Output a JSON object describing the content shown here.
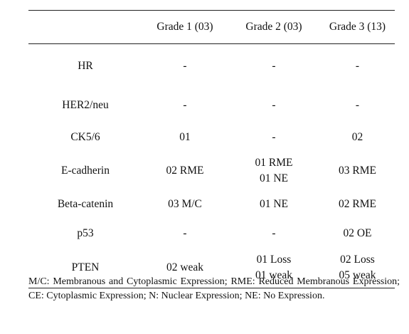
{
  "table": {
    "headers": [
      "",
      "Grade 1 (03)",
      "Grade 2 (03)",
      "Grade 3 (13)"
    ],
    "rows": [
      {
        "marker": "HR",
        "g1": [
          "-"
        ],
        "g2": [
          "-"
        ],
        "g3": [
          "-"
        ]
      },
      {
        "marker": "HER2/neu",
        "g1": [
          "-"
        ],
        "g2": [
          "-"
        ],
        "g3": [
          "-"
        ]
      },
      {
        "marker": "CK5/6",
        "g1": [
          "01"
        ],
        "g2": [
          "-"
        ],
        "g3": [
          "02"
        ]
      },
      {
        "marker": "E-cadherin",
        "g1": [
          "02 RME"
        ],
        "g2": [
          "01 RME",
          "01 NE"
        ],
        "g3": [
          "03 RME"
        ]
      },
      {
        "marker": "Beta-catenin",
        "g1": [
          "03 M/C"
        ],
        "g2": [
          "01 NE"
        ],
        "g3": [
          "02 RME"
        ]
      },
      {
        "marker": "p53",
        "g1": [
          "-"
        ],
        "g2": [
          "-"
        ],
        "g3": [
          "02 OE"
        ]
      },
      {
        "marker": "PTEN",
        "g1": [
          "02 weak"
        ],
        "g2": [
          "01 Loss",
          "01 weak"
        ],
        "g3": [
          "02 Loss",
          "05 weak"
        ]
      }
    ]
  },
  "footnote": "M/C: Membranous and Cytoplasmic Expression; RME: Reduced Membranous Expression; CE: Cytoplasmic Expression; N: Nuclear Expression; NE: No Expression."
}
